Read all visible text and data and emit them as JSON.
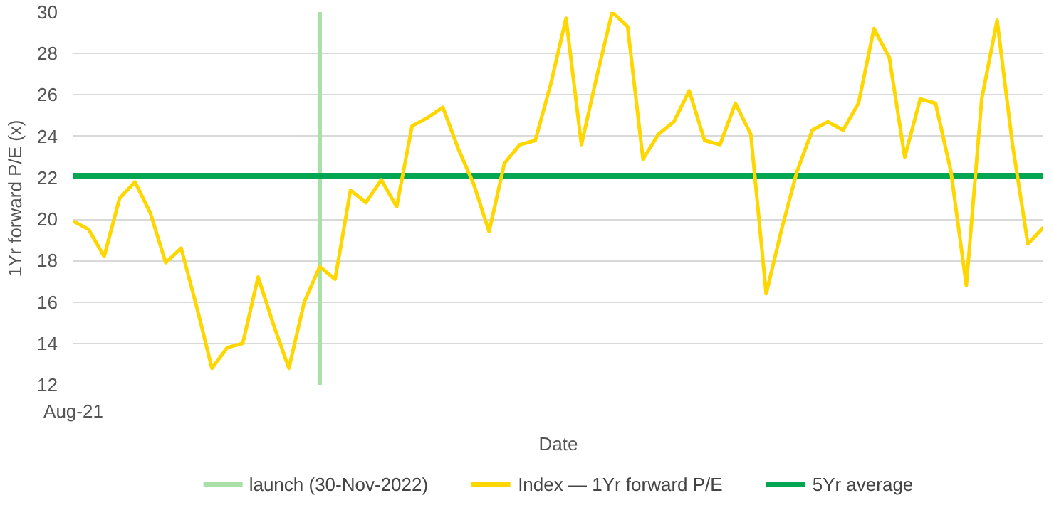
{
  "chart_data": {
    "type": "line",
    "xlabel": "Date",
    "ylabel": "1Yr forward P/E (x)",
    "categories": [
      "Aug-21",
      null,
      null,
      null,
      null,
      null,
      null,
      null,
      null,
      null,
      null,
      null,
      null,
      null,
      null,
      null,
      null,
      null,
      null,
      null,
      null,
      null,
      null,
      null,
      null,
      null,
      null,
      null,
      null,
      null,
      null,
      null,
      null,
      null,
      null,
      null,
      null,
      null,
      null,
      null,
      null,
      null,
      null,
      null,
      null,
      null,
      null,
      null,
      null,
      null,
      null,
      null,
      null,
      null,
      null,
      null,
      null,
      null,
      null,
      null,
      null,
      null,
      null,
      null
    ],
    "ylim": [
      12,
      30
    ],
    "yticks": [
      12,
      14,
      16,
      18,
      20,
      22,
      24,
      26,
      28,
      30
    ],
    "grid": "y",
    "legend": "bottom",
    "series": [
      {
        "name": "Index — 1Yr forward P/E",
        "color": "#ffd700",
        "values": [
          19.9,
          19.5,
          18.2,
          21.0,
          21.8,
          20.3,
          17.9,
          18.6,
          15.8,
          12.8,
          13.8,
          14.0,
          17.2,
          14.9,
          12.8,
          16.0,
          17.7,
          17.1,
          21.4,
          20.8,
          21.9,
          20.6,
          24.5,
          24.9,
          25.4,
          23.4,
          21.7,
          19.4,
          22.7,
          23.6,
          23.8,
          26.5,
          29.7,
          23.6,
          26.9,
          30.0,
          29.3,
          22.9,
          24.1,
          24.7,
          26.2,
          23.8,
          23.6,
          25.6,
          24.1,
          16.4,
          19.5,
          22.3,
          24.3,
          24.7,
          24.3,
          25.6,
          29.2,
          27.8,
          23.0,
          25.8,
          25.6,
          22.3,
          16.8,
          25.8,
          29.6,
          23.6,
          18.8,
          19.6
        ]
      }
    ],
    "ref_lines": [
      {
        "axis": "x",
        "label": "launch (30-Nov-2022)",
        "color": "#a8e0a8"
      },
      {
        "axis": "y",
        "value": 22.1,
        "label": "5Yr average",
        "color": "#00a651"
      }
    ]
  }
}
